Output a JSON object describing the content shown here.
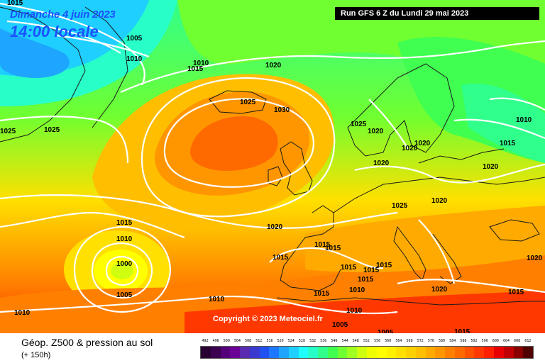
{
  "header": {
    "date": "Dimanche 4 juin 2023",
    "time": "14:00 locale",
    "run": "Run GFS 6 Z du Lundi 29 mai 2023"
  },
  "copyright": "Copyright © 2023 Meteociel.fr",
  "footer": {
    "title": "Géop. Z500 & pression au sol",
    "subtitle": "(+ 150h)"
  },
  "colors": {
    "z500_scale": [
      "#2a0033",
      "#3b0050",
      "#55007a",
      "#6a0096",
      "#5a2bb0",
      "#3a3ad0",
      "#2050f0",
      "#1e78ff",
      "#1ea6ff",
      "#1ecfff",
      "#20ffff",
      "#28ffc8",
      "#30ff8c",
      "#40ff50",
      "#70ff30",
      "#a0ff20",
      "#d0ff10",
      "#f0ff00",
      "#ffff00",
      "#fff000",
      "#ffe000",
      "#ffd000",
      "#ffbf00",
      "#ffaa00",
      "#ff9600",
      "#ff8000",
      "#ff6a00",
      "#ff5000",
      "#ff3800",
      "#ff2000",
      "#e80000",
      "#c00000",
      "#8a0000",
      "#500000"
    ],
    "isobar": "#ffffff",
    "coastline": "#1a1a1a"
  },
  "legend": {
    "values": [
      "492",
      "496",
      "500",
      "504",
      "508",
      "512",
      "516",
      "520",
      "524",
      "528",
      "532",
      "536",
      "540",
      "544",
      "548",
      "552",
      "556",
      "560",
      "564",
      "568",
      "572",
      "576",
      "580",
      "584",
      "588",
      "592",
      "596",
      "600",
      "604",
      "608",
      "612"
    ]
  },
  "isobar_labels": [
    {
      "text": "1015"
    },
    {
      "text": "1005"
    },
    {
      "text": "1010"
    },
    {
      "text": "1015"
    },
    {
      "text": "1010"
    },
    {
      "text": "1020"
    },
    {
      "text": "1025"
    },
    {
      "text": "1030"
    },
    {
      "text": "1025"
    },
    {
      "text": "1025"
    },
    {
      "text": "1025"
    },
    {
      "text": "1020"
    },
    {
      "text": "1020"
    },
    {
      "text": "1020"
    },
    {
      "text": "1020"
    },
    {
      "text": "1010"
    },
    {
      "text": "1015"
    },
    {
      "text": "1020"
    },
    {
      "text": "1020"
    },
    {
      "text": "1015"
    },
    {
      "text": "1010"
    },
    {
      "text": "1000"
    },
    {
      "text": "1005"
    },
    {
      "text": "1020"
    },
    {
      "text": "1015"
    },
    {
      "text": "1015"
    },
    {
      "text": "1015"
    },
    {
      "text": "1015"
    },
    {
      "text": "1015"
    },
    {
      "text": "1015"
    },
    {
      "text": "1010"
    },
    {
      "text": "1015"
    },
    {
      "text": "1015"
    },
    {
      "text": "1010"
    },
    {
      "text": "1005"
    },
    {
      "text": "1005"
    },
    {
      "text": "1010"
    },
    {
      "text": "1010"
    },
    {
      "text": "1020"
    },
    {
      "text": "1020"
    },
    {
      "text": "1015"
    },
    {
      "text": "1015"
    },
    {
      "text": "1025"
    }
  ]
}
